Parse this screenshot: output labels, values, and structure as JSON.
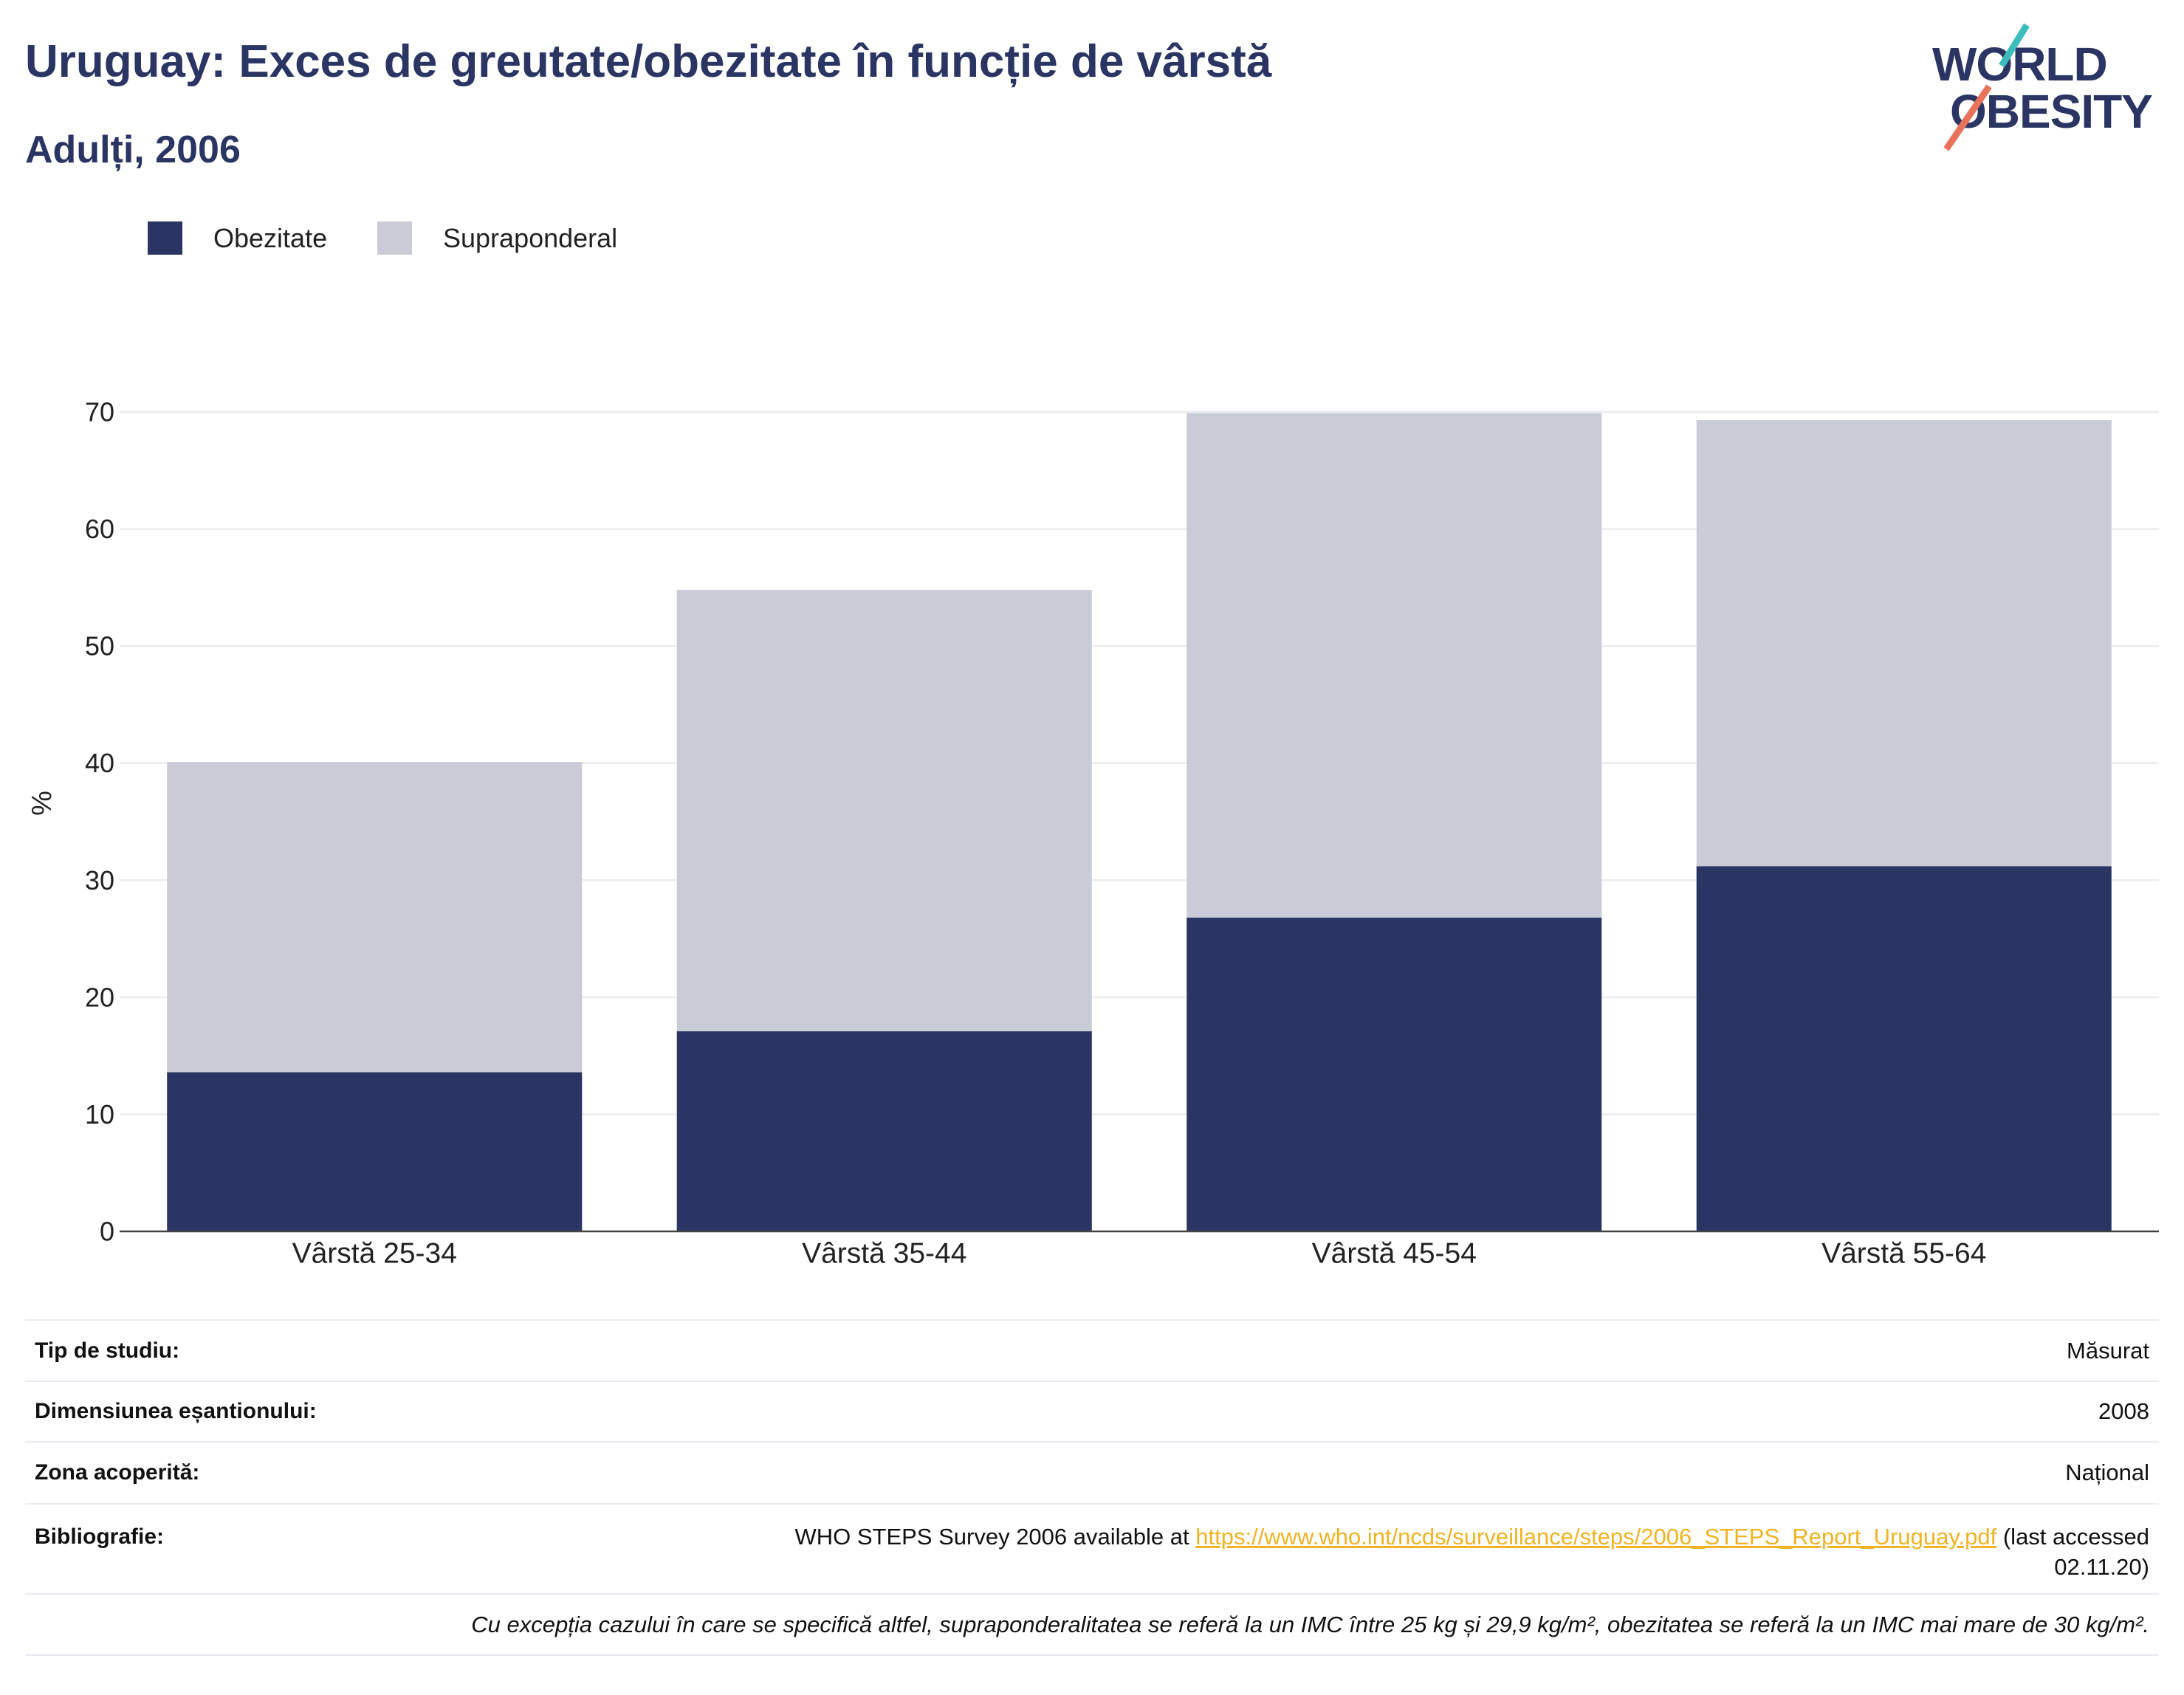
{
  "chart_data": {
    "type": "bar",
    "stacked": true,
    "title": "Uruguay: Exces de greutate/obezitate în funcție de vârstă",
    "subtitle": "Adulți, 2006",
    "categories": [
      "Vârstă 25-34",
      "Vârstă 35-44",
      "Vârstă 45-54",
      "Vârstă 55-64"
    ],
    "series": [
      {
        "name": "Obezitate",
        "color": "#2b3563",
        "values": [
          13.6,
          17.1,
          26.8,
          31.2
        ]
      },
      {
        "name": "Supraponderal",
        "color": "#c9cbd6",
        "values": [
          26.5,
          37.7,
          43.1,
          38.1
        ]
      }
    ],
    "xlabel": "",
    "ylabel": "%",
    "ylim": [
      0,
      70
    ],
    "yticks": [
      0,
      10,
      20,
      30,
      40,
      50,
      60,
      70
    ],
    "grid": true,
    "legend": "top-left"
  },
  "logo": {
    "line1": "WORLD",
    "line2": "OBESITY",
    "slash_top_color": "#3cbcbc",
    "slash_bottom_color": "#e8735a"
  },
  "colors": {
    "gridline": "#ebebf0",
    "axis": "#444444",
    "link": "#f0b323"
  },
  "study_info": {
    "rows": [
      {
        "label": "Tip de studiu:",
        "value": "Măsurat"
      },
      {
        "label": "Dimensiunea eșantionului:",
        "value": "2008"
      },
      {
        "label": "Zona acoperită:",
        "value": "Național"
      }
    ],
    "bibliography": {
      "label": "Bibliografie:",
      "prefix": "WHO STEPS Survey 2006 available at",
      "link": "https://www.who.int/ncds/surveillance/steps/2006_STEPS_Report_Uruguay.pdf",
      "suffix_line1": "(last accessed",
      "suffix_line2": "02.11.20)"
    },
    "footnote": "Cu excepția cazului în care se specifică altfel, supraponderalitatea se referă la un IMC între 25 kg și 29,9 kg/m², obezitatea se referă la un IMC mai mare de 30 kg/m²."
  }
}
